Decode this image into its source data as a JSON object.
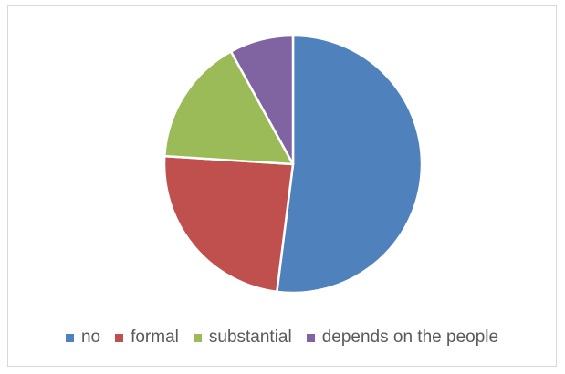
{
  "chart_data": {
    "type": "pie",
    "title": "",
    "categories": [
      "no",
      "formal",
      "substantial",
      "depends on the people"
    ],
    "values": [
      52,
      24,
      16,
      8
    ],
    "colors": [
      "#4f81bd",
      "#c0504d",
      "#9bbb59",
      "#8064a2"
    ],
    "legend_position": "bottom",
    "start_angle_deg": 0,
    "direction": "clockwise"
  }
}
